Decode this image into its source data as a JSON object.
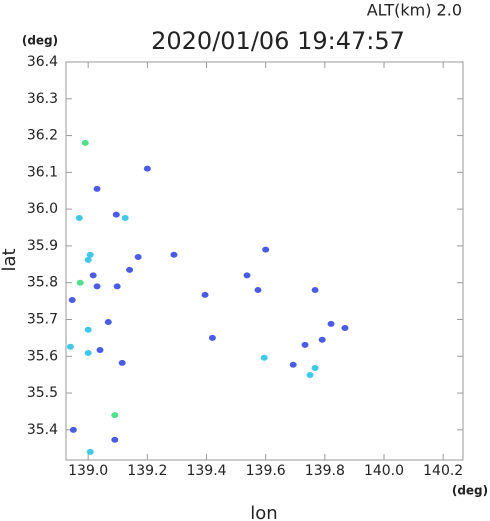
{
  "chart_data": {
    "type": "scatter",
    "title": "2020/01/06 19:47:57",
    "subtitle": "ALT(km) 2.0",
    "x_label": "lon",
    "y_label": "lat",
    "x_unit": "(deg)",
    "y_unit": "(deg)",
    "xlim": [
      138.925,
      140.267
    ],
    "ylim": [
      35.318,
      36.4
    ],
    "xticks": [
      {
        "value": 139,
        "label": "139.0"
      },
      139.2,
      139.4,
      139.6,
      139.8,
      {
        "value": 140,
        "label": "140.0"
      },
      140.2
    ],
    "yticks": [
      35.4,
      35.5,
      35.6,
      35.7,
      35.8,
      35.9,
      {
        "value": 36,
        "label": "36.0"
      },
      36.1,
      36.2,
      36.3,
      36.4
    ],
    "series": [
      {
        "color": "#4a5ce6",
        "x": [
          139.03,
          139.2,
          139.095,
          139.017,
          138.946,
          139.03,
          139.098,
          139.169,
          139.14,
          139.068,
          139.04,
          139.115,
          138.95,
          139.09,
          139.29,
          139.395,
          139.42,
          139.6,
          139.537,
          139.574,
          139.693,
          139.767,
          139.821,
          139.868,
          139.791,
          139.733
        ],
        "values": [
          36.055,
          36.11,
          35.985,
          35.82,
          35.753,
          35.79,
          35.79,
          35.87,
          35.835,
          35.693,
          35.617,
          35.582,
          35.4,
          35.373,
          35.876,
          35.767,
          35.65,
          35.89,
          35.82,
          35.78,
          35.577,
          35.78,
          35.688,
          35.677,
          35.645,
          35.631
        ]
      },
      {
        "color": "#3fc8e8",
        "x": [
          139.125,
          138.97,
          139.007,
          139.0,
          139.0,
          138.94,
          139.0,
          139.007,
          139.595,
          139.767,
          139.75
        ],
        "values": [
          35.976,
          35.976,
          35.876,
          35.862,
          35.672,
          35.626,
          35.609,
          35.34,
          35.596,
          35.568,
          35.549
        ]
      },
      {
        "color": "#4ee08a",
        "x": [
          138.99,
          138.973,
          139.09
        ],
        "values": [
          36.18,
          35.8,
          35.44
        ]
      }
    ]
  }
}
